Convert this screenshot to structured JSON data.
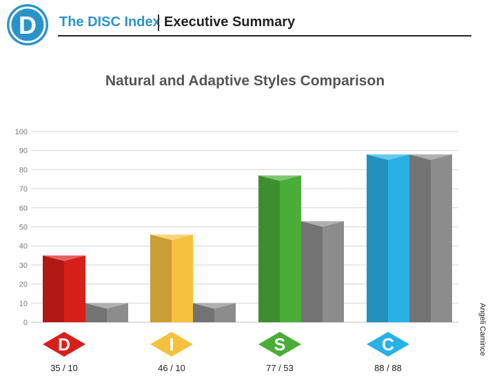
{
  "header": {
    "logo_letter": "D",
    "brand": "The DISC Index",
    "section": "Executive Summary"
  },
  "author": "Angeli Camince",
  "colors": {
    "brand_blue": "#2a94c9",
    "gray_bar": "#8c8c8c"
  },
  "chart_data": {
    "type": "bar",
    "title": "Natural and Adaptive Styles Comparison",
    "categories": [
      "D",
      "I",
      "S",
      "C"
    ],
    "series": [
      {
        "values": [
          35,
          46,
          77,
          88
        ]
      },
      {
        "values": [
          10,
          10,
          53,
          88
        ]
      }
    ],
    "value_labels": [
      "35 / 10",
      "46 / 10",
      "77 / 53",
      "88 / 88"
    ],
    "category_colors": [
      "#d81f1a",
      "#f6c13f",
      "#4aad37",
      "#29b1e6"
    ],
    "yticks": [
      0,
      10,
      20,
      30,
      40,
      50,
      60,
      70,
      80,
      90,
      100
    ],
    "ylim": [
      0,
      100
    ],
    "grid": true
  }
}
